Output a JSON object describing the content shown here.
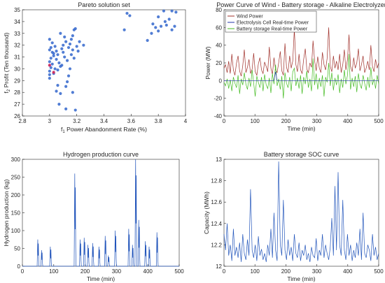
{
  "chart_data": [
    {
      "id": "pareto",
      "type": "scatter",
      "title": "Pareto solution set",
      "xlabel_sym": "f",
      "xlabel_sub": "1",
      "xlabel_text": "Power Abandonment Rate (%)",
      "ylabel_sym": "f",
      "ylabel_sub": "2",
      "ylabel_text": "Profit (Ten thousand)",
      "xlim": [
        2.8,
        4
      ],
      "ylim": [
        26,
        35
      ],
      "xticks": [
        "2.8",
        "3",
        "3.2",
        "3.4",
        "3.6",
        "3.8",
        "4"
      ],
      "yticks": [
        "26",
        "27",
        "28",
        "29",
        "30",
        "31",
        "32",
        "33",
        "34",
        "35"
      ],
      "color": "#3366cc",
      "accent_color": "#cc3366",
      "points": [
        [
          3.0,
          29.2
        ],
        [
          3.0,
          29.5
        ],
        [
          3.0,
          29.8
        ],
        [
          3.01,
          30.1
        ],
        [
          3.02,
          30.4
        ],
        [
          3.0,
          30.6
        ],
        [
          3.01,
          30.9
        ],
        [
          3.03,
          31.1
        ],
        [
          3.02,
          31.4
        ],
        [
          3.0,
          31.6
        ],
        [
          3.01,
          31.8
        ],
        [
          3.04,
          31.9
        ],
        [
          3.05,
          31.5
        ],
        [
          3.06,
          31.2
        ],
        [
          3.05,
          30.8
        ],
        [
          3.07,
          30.5
        ],
        [
          3.08,
          30.2
        ],
        [
          3.06,
          29.9
        ],
        [
          3.04,
          30.0
        ],
        [
          3.03,
          29.6
        ],
        [
          3.09,
          31.7
        ],
        [
          3.1,
          32.0
        ],
        [
          3.12,
          32.3
        ],
        [
          3.1,
          31.4
        ],
        [
          3.11,
          31.0
        ],
        [
          3.13,
          30.7
        ],
        [
          3.09,
          30.3
        ],
        [
          3.14,
          31.8
        ],
        [
          3.15,
          32.1
        ],
        [
          3.16,
          32.5
        ],
        [
          3.17,
          32.8
        ],
        [
          3.18,
          33.3
        ],
        [
          3.19,
          33.4
        ],
        [
          3.17,
          31.6
        ],
        [
          3.16,
          31.2
        ],
        [
          3.18,
          30.9
        ],
        [
          3.15,
          30.0
        ],
        [
          3.14,
          29.4
        ],
        [
          3.13,
          28.9
        ],
        [
          3.12,
          28.5
        ],
        [
          3.06,
          28.6
        ],
        [
          3.05,
          28.1
        ],
        [
          3.08,
          27.9
        ],
        [
          3.07,
          27.0
        ],
        [
          3.12,
          26.6
        ],
        [
          3.19,
          26.5
        ],
        [
          3.17,
          28.0
        ],
        [
          3.2,
          31.9
        ],
        [
          3.21,
          31.5
        ],
        [
          3.22,
          32.3
        ],
        [
          3.25,
          32.0
        ],
        [
          3.02,
          32.2
        ],
        [
          3.0,
          32.5
        ],
        [
          3.03,
          31.3
        ],
        [
          3.08,
          33.0
        ],
        [
          3.11,
          32.7
        ],
        [
          3.55,
          33.3
        ],
        [
          3.57,
          34.7
        ],
        [
          3.59,
          34.5
        ],
        [
          3.72,
          32.4
        ],
        [
          3.75,
          33.0
        ],
        [
          3.78,
          33.5
        ],
        [
          3.8,
          33.2
        ],
        [
          3.82,
          33.6
        ],
        [
          3.85,
          34.0
        ],
        [
          3.86,
          33.7
        ],
        [
          3.88,
          34.2
        ],
        [
          3.9,
          33.3
        ],
        [
          3.92,
          33.6
        ],
        [
          3.9,
          34.9
        ],
        [
          3.84,
          34.9
        ],
        [
          3.8,
          34.4
        ],
        [
          3.76,
          33.8
        ],
        [
          3.93,
          34.8
        ]
      ],
      "accent_points": [
        [
          3.0,
          30.3
        ],
        [
          3.03,
          29.7
        ]
      ]
    },
    {
      "id": "power",
      "type": "line",
      "title": "Power Curve of Wind - Battery storage - Alkaline Electrolyzer",
      "xlabel": "Time (min)",
      "ylabel": "Power (MW)",
      "xlim": [
        0,
        500
      ],
      "ylim": [
        -40,
        80
      ],
      "xticks": [
        "0",
        "100",
        "200",
        "300",
        "400",
        "500"
      ],
      "yticks": [
        "-40",
        "-20",
        "0",
        "20",
        "40",
        "60",
        "80"
      ],
      "series": [
        {
          "name": "Wind Power",
          "color": "#a0302a",
          "values": [
            14,
            18,
            9,
            22,
            8,
            30,
            12,
            6,
            20,
            28,
            11,
            5,
            17,
            35,
            9,
            15,
            24,
            8,
            13,
            31,
            10,
            6,
            19,
            26,
            12,
            8,
            21,
            16,
            10,
            38,
            14,
            7,
            26,
            12,
            9,
            20,
            33,
            11,
            6,
            42,
            15,
            9,
            28,
            14,
            22,
            58,
            18,
            10,
            30,
            12,
            8,
            24,
            36,
            13,
            9,
            20,
            15,
            45,
            22,
            11,
            27,
            14,
            9,
            32,
            18,
            12,
            25,
            60,
            16,
            10,
            28,
            14,
            22,
            12,
            30,
            9,
            18,
            35,
            12,
            24,
            52,
            16,
            10,
            26,
            14,
            20,
            36,
            11,
            18,
            28,
            9,
            14,
            22,
            12,
            40,
            16,
            10,
            24,
            14,
            20
          ]
        },
        {
          "name": "Electrolysis Cell Real-time Power",
          "color": "#2233aa",
          "values": [
            0,
            0,
            0,
            0,
            0,
            0,
            0,
            0,
            0,
            0,
            0,
            0,
            0,
            0,
            0,
            0,
            0,
            0,
            0,
            0,
            0,
            0,
            0,
            0,
            0,
            0,
            0,
            0,
            0,
            0,
            0,
            0,
            0,
            10,
            0,
            0,
            0,
            0,
            0,
            0,
            0,
            0,
            0,
            0,
            0,
            0,
            0,
            0,
            0,
            0,
            0,
            0,
            0,
            0,
            0,
            0,
            0,
            0,
            0,
            0,
            0,
            0,
            0,
            0,
            0,
            0,
            0,
            0,
            0,
            0,
            0,
            0,
            0,
            0,
            0,
            0,
            0,
            0,
            0,
            0,
            0,
            0,
            0,
            0,
            0,
            0,
            0,
            0,
            0,
            0,
            0,
            0,
            0,
            0,
            0,
            0,
            0,
            0,
            0,
            0
          ]
        },
        {
          "name": "Battery storage Real-time Power",
          "color": "#44bb22",
          "values": [
            -2,
            -6,
            2,
            -9,
            1,
            -12,
            4,
            -3,
            -8,
            6,
            -15,
            2,
            -5,
            9,
            -4,
            -10,
            3,
            -7,
            12,
            -3,
            -18,
            5,
            -2,
            -8,
            4,
            -12,
            7,
            -5,
            -9,
            3,
            -14,
            8,
            -4,
            18,
            -6,
            2,
            -10,
            5,
            -20,
            9,
            -3,
            -8,
            4,
            -12,
            10,
            14,
            -6,
            3,
            -9,
            6,
            -15,
            4,
            -4,
            11,
            -8,
            2,
            -12,
            25,
            -5,
            8,
            -10,
            3,
            -7,
            6,
            -18,
            4,
            -2,
            20,
            -6,
            9,
            -11,
            3,
            -5,
            7,
            -14,
            2,
            -8,
            12,
            -4,
            6,
            30,
            -10,
            3,
            -7,
            5,
            -13,
            8,
            -4,
            -9,
            6,
            -3,
            -11,
            4,
            -8,
            15,
            -5,
            2,
            -9,
            6,
            -4
          ]
        }
      ],
      "legend_position": "top-left"
    },
    {
      "id": "hydrogen",
      "type": "line",
      "title": "Hydrogen production curve",
      "xlabel": "Time (min)",
      "ylabel": "Hydrogen production (kg)",
      "xlim": [
        0,
        500
      ],
      "ylim": [
        0,
        300
      ],
      "xticks": [
        "0",
        "100",
        "200",
        "300",
        "400",
        "500"
      ],
      "yticks": [
        "0",
        "50",
        "100",
        "150",
        "200",
        "250",
        "300"
      ],
      "color": "#2255bb",
      "pulses": [
        [
          50,
          75
        ],
        [
          62,
          45
        ],
        [
          90,
          55
        ],
        [
          168,
          260
        ],
        [
          185,
          75
        ],
        [
          198,
          80
        ],
        [
          210,
          60
        ],
        [
          225,
          65
        ],
        [
          245,
          55
        ],
        [
          265,
          85
        ],
        [
          275,
          30
        ],
        [
          297,
          100
        ],
        [
          340,
          105
        ],
        [
          352,
          60
        ],
        [
          362,
          300
        ],
        [
          372,
          130
        ],
        [
          393,
          70
        ],
        [
          405,
          55
        ],
        [
          430,
          95
        ]
      ]
    },
    {
      "id": "soc",
      "type": "line",
      "title": "Battery storage SOC curve",
      "xlabel": "Time (min)",
      "ylabel": "Capacity (MWh)",
      "xlim": [
        0,
        500
      ],
      "ylim": [
        12,
        13
      ],
      "xticks": [
        "0",
        "100",
        "200",
        "300",
        "400",
        "500"
      ],
      "yticks": [
        "12",
        "12.2",
        "12.4",
        "12.6",
        "12.8",
        "13"
      ],
      "color": "#2255bb",
      "values": [
        12.3,
        12.15,
        12.4,
        12.1,
        12.2,
        12.05,
        12.35,
        12.1,
        12.18,
        12.08,
        12.22,
        12.04,
        12.3,
        12.12,
        12.06,
        12.25,
        12.1,
        12.72,
        12.15,
        12.08,
        12.2,
        12.05,
        12.28,
        12.1,
        12.16,
        12.06,
        12.12,
        12.04,
        12.2,
        12.1,
        12.35,
        12.08,
        12.5,
        12.15,
        12.05,
        12.98,
        12.2,
        12.1,
        12.62,
        12.15,
        12.06,
        12.25,
        12.1,
        12.18,
        12.05,
        12.3,
        12.12,
        12.08,
        12.22,
        12.05,
        12.15,
        12.1,
        12.2,
        12.06,
        12.12,
        12.04,
        12.18,
        12.1,
        12.08,
        12.26,
        12.05,
        12.15,
        12.1,
        12.3,
        12.08,
        12.2,
        12.12,
        12.06,
        12.18,
        12.45,
        12.1,
        12.75,
        12.15,
        12.88,
        12.2,
        12.1,
        12.62,
        12.15,
        12.06,
        12.3,
        12.1,
        12.2,
        12.05,
        12.15,
        12.08,
        12.22,
        12.1,
        12.35,
        12.06,
        12.5,
        12.12,
        12.08,
        12.2,
        12.15,
        12.05,
        12.3,
        12.1,
        12.18,
        12.06,
        12.12
      ]
    }
  ]
}
